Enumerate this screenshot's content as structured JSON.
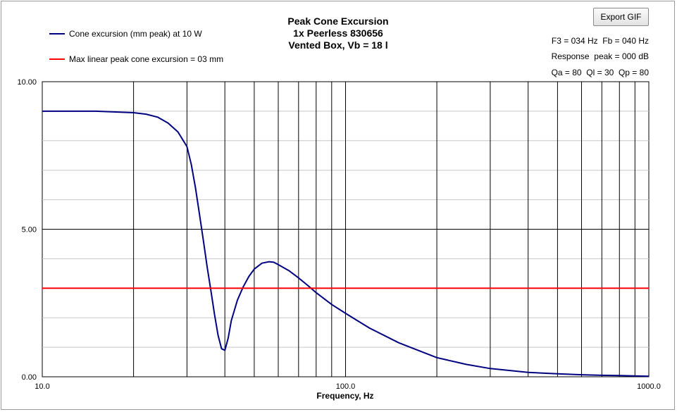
{
  "export_button": {
    "label": "Export GIF"
  },
  "info": {
    "f3_fb": "F3 = 034 Hz  Fb = 040 Hz",
    "response_peak": "Response  peak = 000 dB",
    "q_values": "Qa = 80  Ql = 30  Qp = 80"
  },
  "colors": {
    "excursion": "#000080",
    "limit": "#ff0000",
    "grid": "#000000"
  },
  "chart_data": {
    "type": "line",
    "title": [
      "Peak Cone Excursion",
      "1x Peerless 830656",
      "Vented Box, Vb = 18 l"
    ],
    "xlabel": "Frequency, Hz",
    "ylabel": "",
    "xscale": "log",
    "xlim": [
      10,
      1000
    ],
    "ylim": [
      0,
      10
    ],
    "xticks": [
      "10.0",
      "100.0",
      "1000.0"
    ],
    "yticks": [
      "0.00",
      "5.00",
      "10.00"
    ],
    "grid": true,
    "legend_position": "top-left",
    "series": [
      {
        "name": "Cone excursion (mm peak) at 10 W",
        "color": "#000080",
        "x": [
          10,
          15,
          20,
          22,
          24,
          26,
          28,
          30,
          31,
          32,
          33,
          34,
          35,
          36,
          37,
          38,
          39,
          40,
          41,
          42,
          44,
          46,
          48,
          50,
          53,
          56,
          58,
          60,
          65,
          70,
          75,
          80,
          90,
          100,
          120,
          150,
          200,
          250,
          300,
          400,
          500,
          600,
          700,
          800,
          1000
        ],
        "y": [
          9.0,
          9.0,
          8.95,
          8.9,
          8.8,
          8.6,
          8.3,
          7.8,
          7.2,
          6.4,
          5.5,
          4.6,
          3.7,
          2.9,
          2.1,
          1.4,
          0.95,
          0.9,
          1.3,
          1.9,
          2.6,
          3.05,
          3.4,
          3.65,
          3.85,
          3.9,
          3.88,
          3.8,
          3.6,
          3.35,
          3.1,
          2.85,
          2.45,
          2.15,
          1.65,
          1.15,
          0.65,
          0.42,
          0.28,
          0.15,
          0.1,
          0.07,
          0.05,
          0.04,
          0.02
        ]
      },
      {
        "name": "Max linear peak cone excursion = 03 mm",
        "color": "#ff0000",
        "x": [
          10,
          1000
        ],
        "y": [
          3,
          3
        ]
      }
    ]
  }
}
